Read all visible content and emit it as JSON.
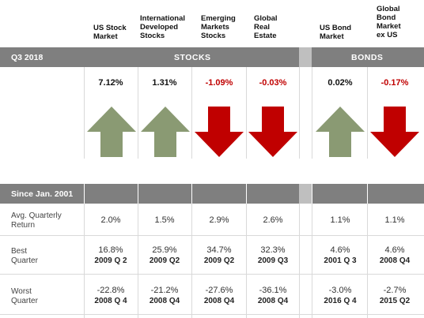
{
  "columns": [
    {
      "name": "US Stock\nMarket",
      "return": "7.12%",
      "direction": "up",
      "avg": "2.0%",
      "best": "16.8%",
      "best_q": "2009 Q 2",
      "worst": "-22.8%",
      "worst_q": "2008 Q 4"
    },
    {
      "name": "International\nDeveloped\nStocks",
      "return": "1.31%",
      "direction": "up",
      "avg": "1.5%",
      "best": "25.9%",
      "best_q": "2009 Q2",
      "worst": "-21.2%",
      "worst_q": "2008 Q4"
    },
    {
      "name": "Emerging\nMarkets\nStocks",
      "return": "-1.09%",
      "direction": "down",
      "avg": "2.9%",
      "best": "34.7%",
      "best_q": "2009 Q2",
      "worst": "-27.6%",
      "worst_q": "2008 Q4"
    },
    {
      "name": "Global\nReal\nEstate",
      "return": "-0.03%",
      "direction": "down",
      "avg": "2.6%",
      "best": "32.3%",
      "best_q": "2009 Q3",
      "worst": "-36.1%",
      "worst_q": "2008 Q4"
    },
    {
      "name": "US Bond\nMarket",
      "return": "0.02%",
      "direction": "up",
      "avg": "1.1%",
      "best": "4.6%",
      "best_q": "2001 Q 3",
      "worst": "-3.0%",
      "worst_q": "2016 Q 4"
    },
    {
      "name": "Global\nBond\nMarket\nex US",
      "return": "-0.17%",
      "direction": "down",
      "avg": "1.1%",
      "best": "4.6%",
      "best_q": "2008 Q4",
      "worst": "-2.7%",
      "worst_q": "2015 Q2"
    }
  ],
  "header_bar": {
    "period": "Q3 2018",
    "stocks": "STOCKS",
    "bonds": "BONDS"
  },
  "table": {
    "title": "Since Jan. 2001",
    "row_avg": "Avg. Quarterly\nReturn",
    "row_best": "Best\nQuarter",
    "row_worst": "Worst\nQuarter"
  },
  "colors": {
    "up": "#8a9a73",
    "down": "#c00000",
    "bar": "#7f7f7f",
    "separator": "#bfbfbf"
  }
}
